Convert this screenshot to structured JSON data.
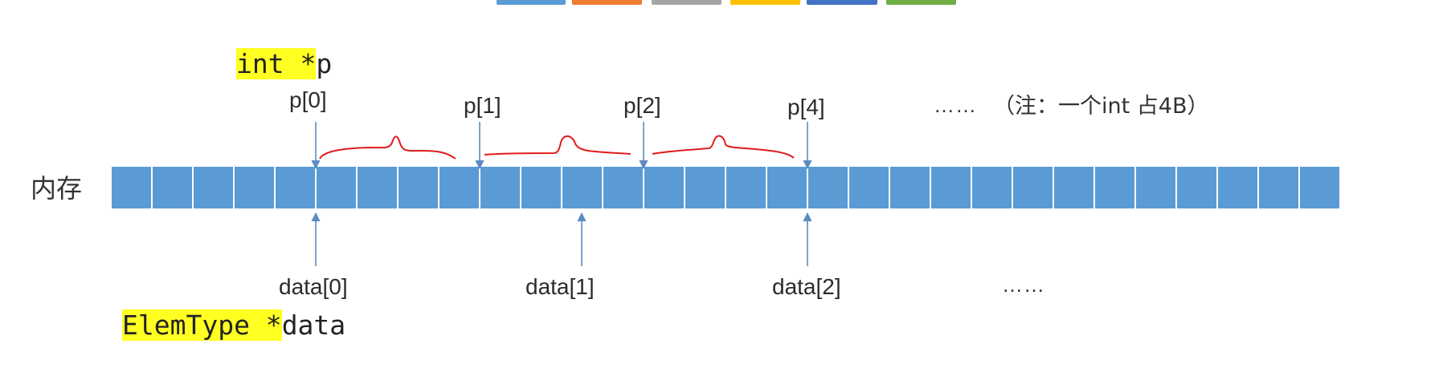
{
  "swatch_colors": [
    "#5b9bd5",
    "#ed7d31",
    "#a5a5a5",
    "#ffc000",
    "#4472c4",
    "#70ad47"
  ],
  "int_decl": {
    "highlight": "int *",
    "rest": "p"
  },
  "elem_decl": {
    "highlight": "ElemType *",
    "rest": "data"
  },
  "memory_label": "内存",
  "memory_cell_count": 30,
  "memory_cell_color": "#5b9bd5",
  "arrow_color": "#5b8bc0",
  "brace_color": "#e01b1b",
  "highlight_color": "#ffff22",
  "top_pointers": [
    {
      "label": "p[0]",
      "cell_index": 5
    },
    {
      "label": "p[1]",
      "cell_index": 9
    },
    {
      "label": "p[2]",
      "cell_index": 13
    },
    {
      "label": "p[4]",
      "cell_index": 17
    }
  ],
  "bottom_pointers": [
    {
      "label": "data[0]",
      "cell_index": 5
    },
    {
      "label": "data[1]",
      "cell_index": 11
    },
    {
      "label": "data[2]",
      "cell_index": 17
    }
  ],
  "top_ellipsis": "……",
  "bottom_ellipsis": "……",
  "note": "（注：一个int 占4B）"
}
